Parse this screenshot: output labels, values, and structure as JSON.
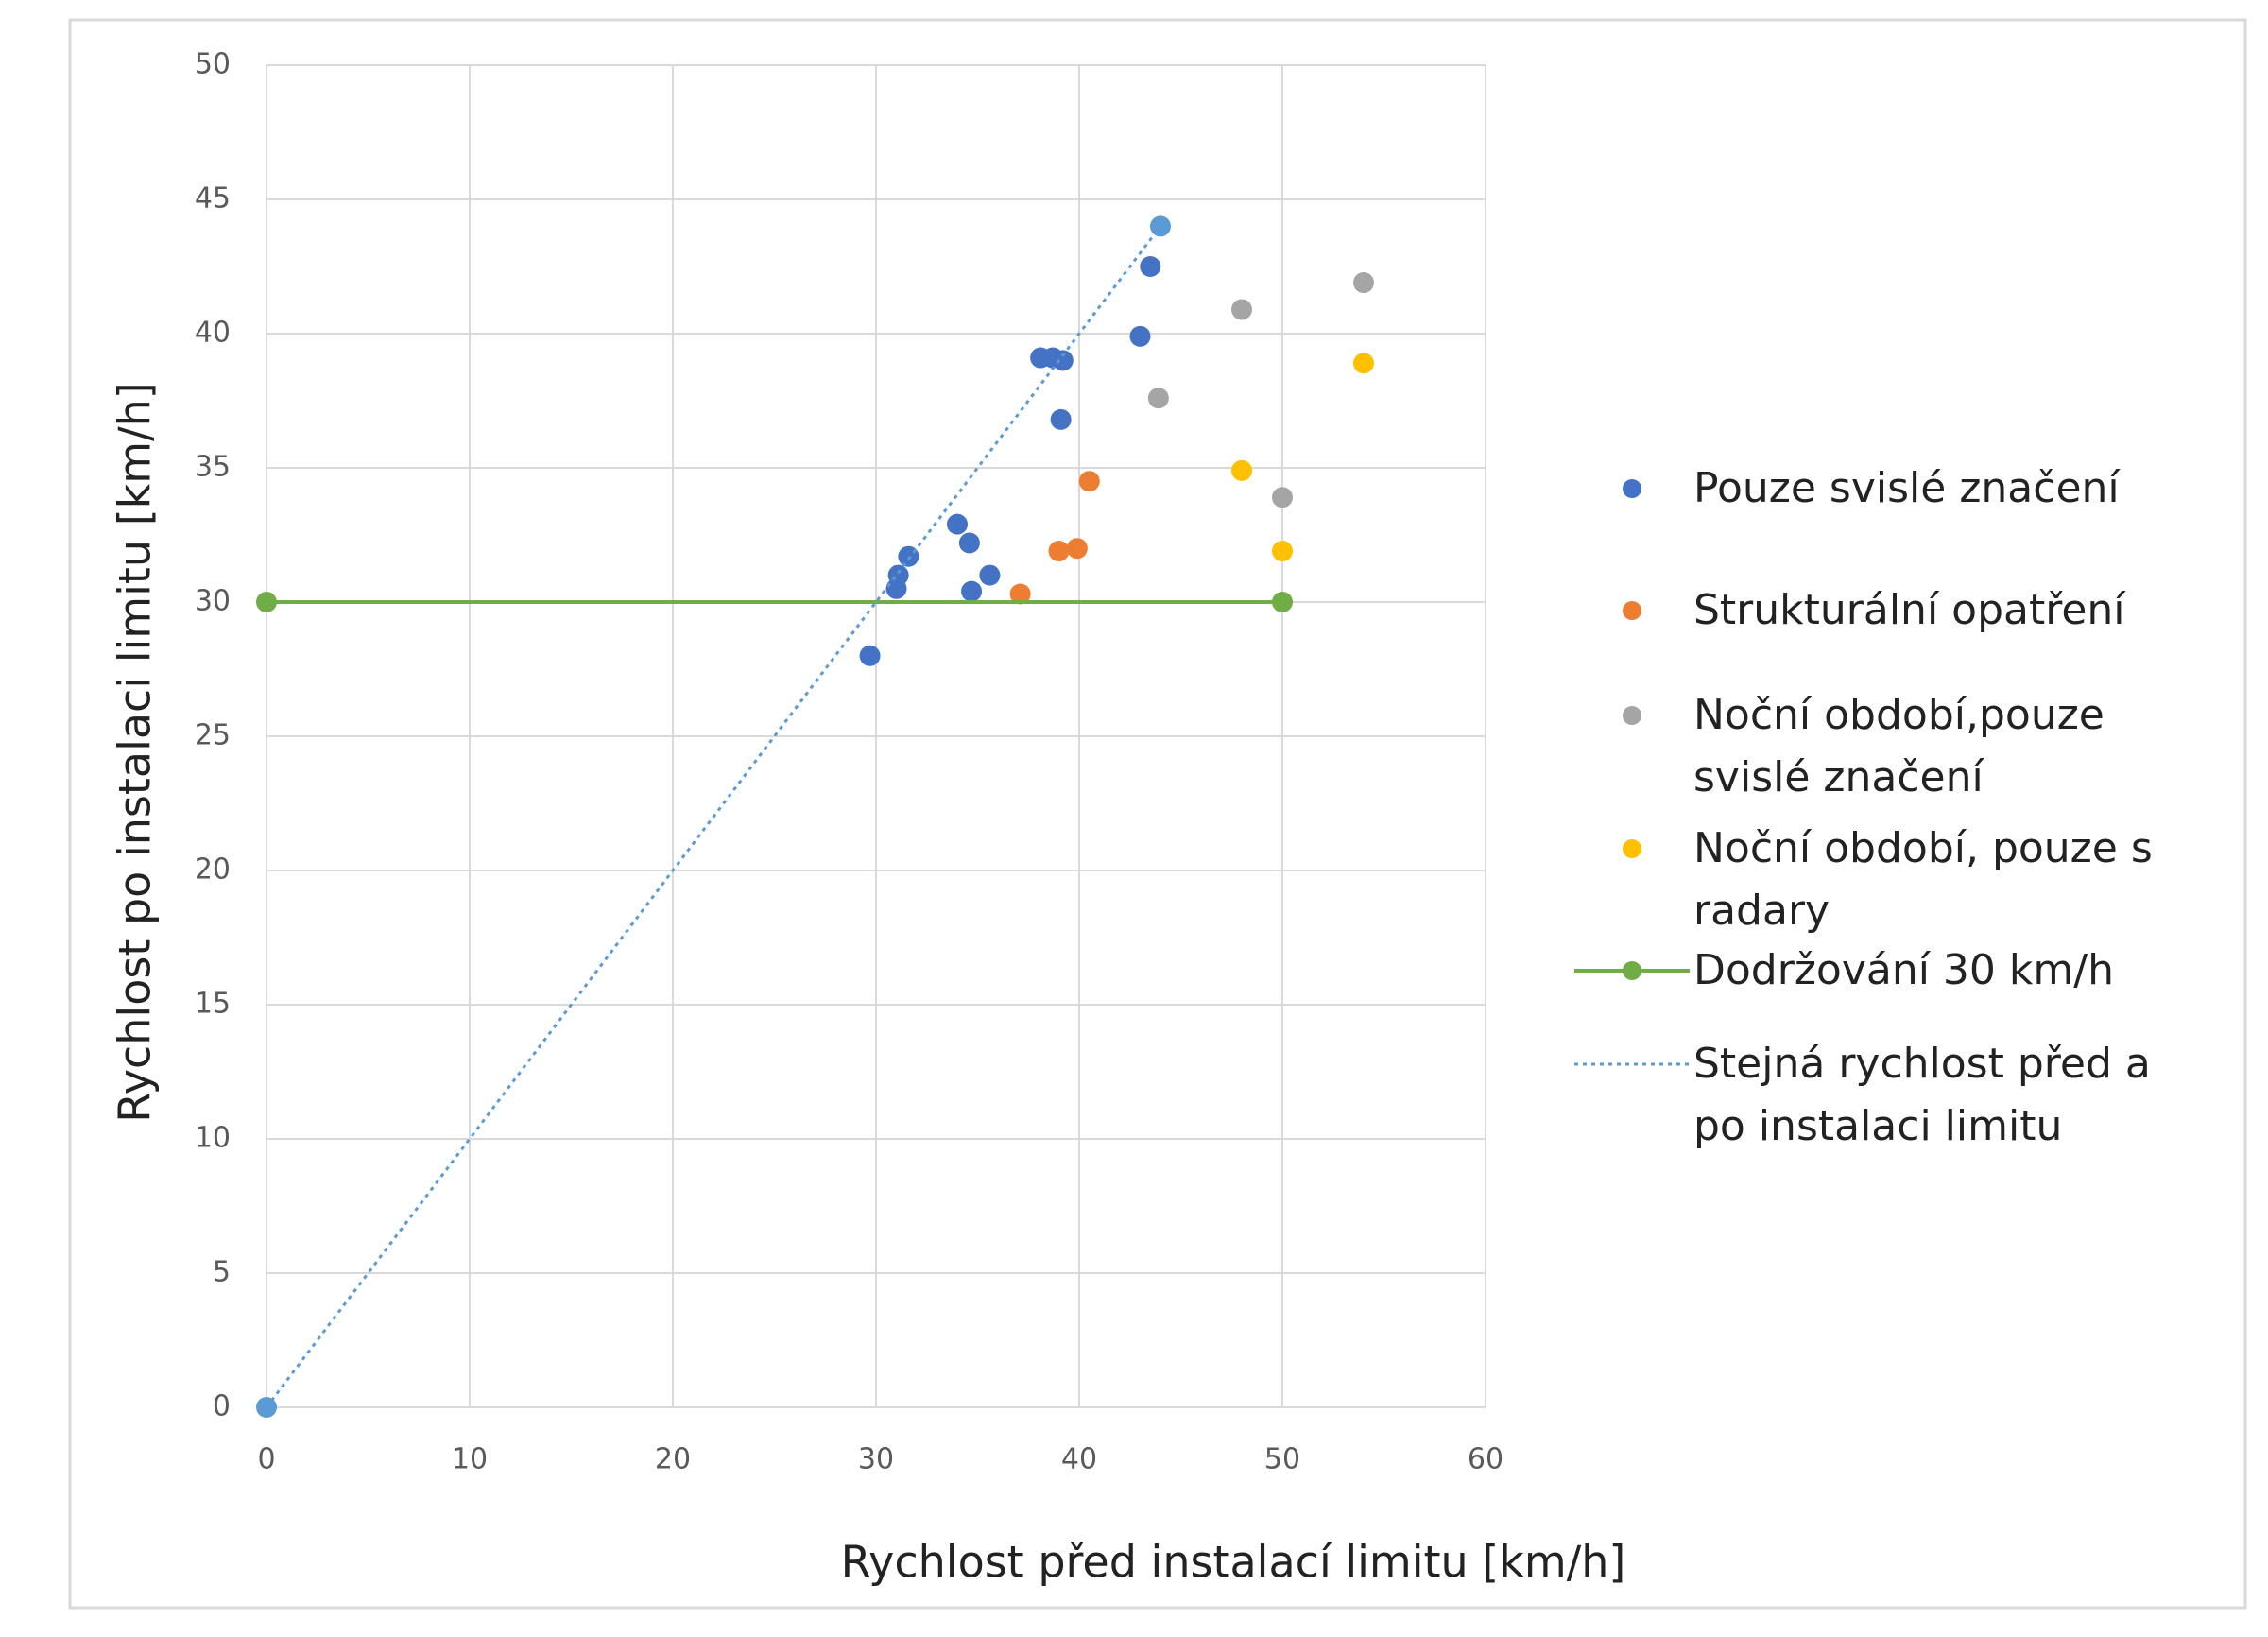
{
  "chart_data": {
    "type": "scatter",
    "xlabel": "Rychlost před instalací limitu [km/h]",
    "ylabel": "Rychlost po instalaci limitu [km/h]",
    "xlim": [
      0,
      60
    ],
    "xticks": [
      0,
      10,
      20,
      30,
      40,
      50,
      60
    ],
    "ylim": [
      0,
      50
    ],
    "yticks": [
      0,
      5,
      10,
      15,
      20,
      25,
      30,
      35,
      40,
      45,
      50
    ],
    "grid": true,
    "legend": "right",
    "series": [
      {
        "name": "Pouze svislé značení",
        "color": "#4472c4",
        "mode": "markers",
        "x": [
          29.7,
          31,
          31.1,
          31.6,
          34,
          34.6,
          34.7,
          35.6,
          38.1,
          38.7,
          39.2,
          39.1,
          43,
          43.5
        ],
        "values": [
          28.0,
          30.5,
          31.0,
          31.7,
          32.9,
          32.2,
          30.4,
          31.0,
          39.1,
          39.1,
          39.0,
          36.8,
          39.9,
          42.5
        ]
      },
      {
        "name": "Strukturální opatření",
        "color": "#ed7d31",
        "mode": "markers",
        "x": [
          37.1,
          39,
          39.9,
          40.5
        ],
        "values": [
          30.3,
          31.9,
          32.0,
          34.5
        ]
      },
      {
        "name": "Noční období,pouze svislé značení",
        "color": "#a5a5a5",
        "mode": "markers",
        "x": [
          43.9,
          48,
          50,
          54
        ],
        "values": [
          37.6,
          40.9,
          33.9,
          41.9
        ]
      },
      {
        "name": "Noční období, pouze s radary",
        "color": "#ffc000",
        "mode": "markers",
        "x": [
          48,
          50,
          54
        ],
        "values": [
          34.9,
          31.9,
          38.9
        ]
      },
      {
        "name": "Dodržování 30 km/h",
        "color": "#70ad47",
        "mode": "lines+markers",
        "line_style": "solid",
        "x": [
          0,
          50
        ],
        "values": [
          30,
          30
        ]
      },
      {
        "name": "Stejná rychlost před a po instalaci limitu",
        "color": "#5b9bd5",
        "mode": "lines+markers",
        "line_style": "dotted",
        "x": [
          0,
          44
        ],
        "values": [
          0,
          44
        ]
      }
    ]
  }
}
